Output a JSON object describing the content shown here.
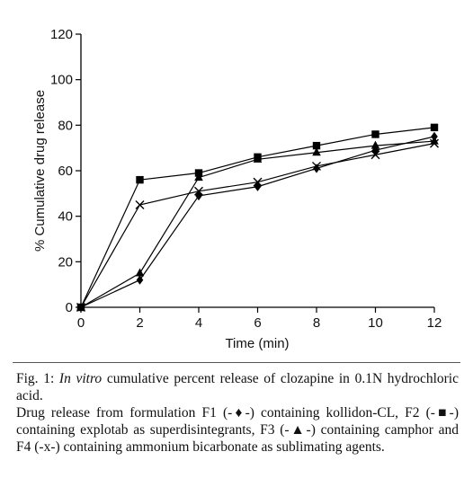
{
  "chart_data": {
    "type": "line",
    "x": [
      0,
      2,
      4,
      6,
      8,
      10,
      12
    ],
    "xlabel": "Time (min)",
    "ylabel": "% Cumulative drug release",
    "xlim": [
      0,
      12
    ],
    "ylim": [
      0,
      120
    ],
    "xticks": [
      "0",
      "2",
      "4",
      "6",
      "8",
      "10",
      "12"
    ],
    "yticks": [
      "0",
      "20",
      "40",
      "60",
      "80",
      "100",
      "120"
    ],
    "grid": false,
    "series": [
      {
        "name": "F1",
        "marker": "diamond",
        "values": [
          0,
          12,
          49,
          53,
          61,
          69,
          75
        ]
      },
      {
        "name": "F2",
        "marker": "square",
        "values": [
          0,
          56,
          59,
          66,
          71,
          76,
          79
        ]
      },
      {
        "name": "F3",
        "marker": "triangle",
        "values": [
          0,
          15,
          57,
          65,
          68,
          71,
          73
        ]
      },
      {
        "name": "F4",
        "marker": "x",
        "values": [
          0,
          45,
          51,
          55,
          62,
          67,
          72
        ]
      }
    ],
    "colors": {
      "line": "#000000",
      "marker": "#000000"
    }
  },
  "caption": {
    "fig_label": "Fig. 1: ",
    "fig_italic": "In vitro",
    "fig_rest": " cumulative percent release of clozapine in 0.1N hydrochloric acid.",
    "detail": "Drug release from formulation F1 (-♦-) containing kollidon-CL, F2 (-■-) containing explotab as superdisintegrants, F3 (-▲-) containing camphor and F4 (-x-) containing ammonium bicarbonate as sublimating agents."
  }
}
